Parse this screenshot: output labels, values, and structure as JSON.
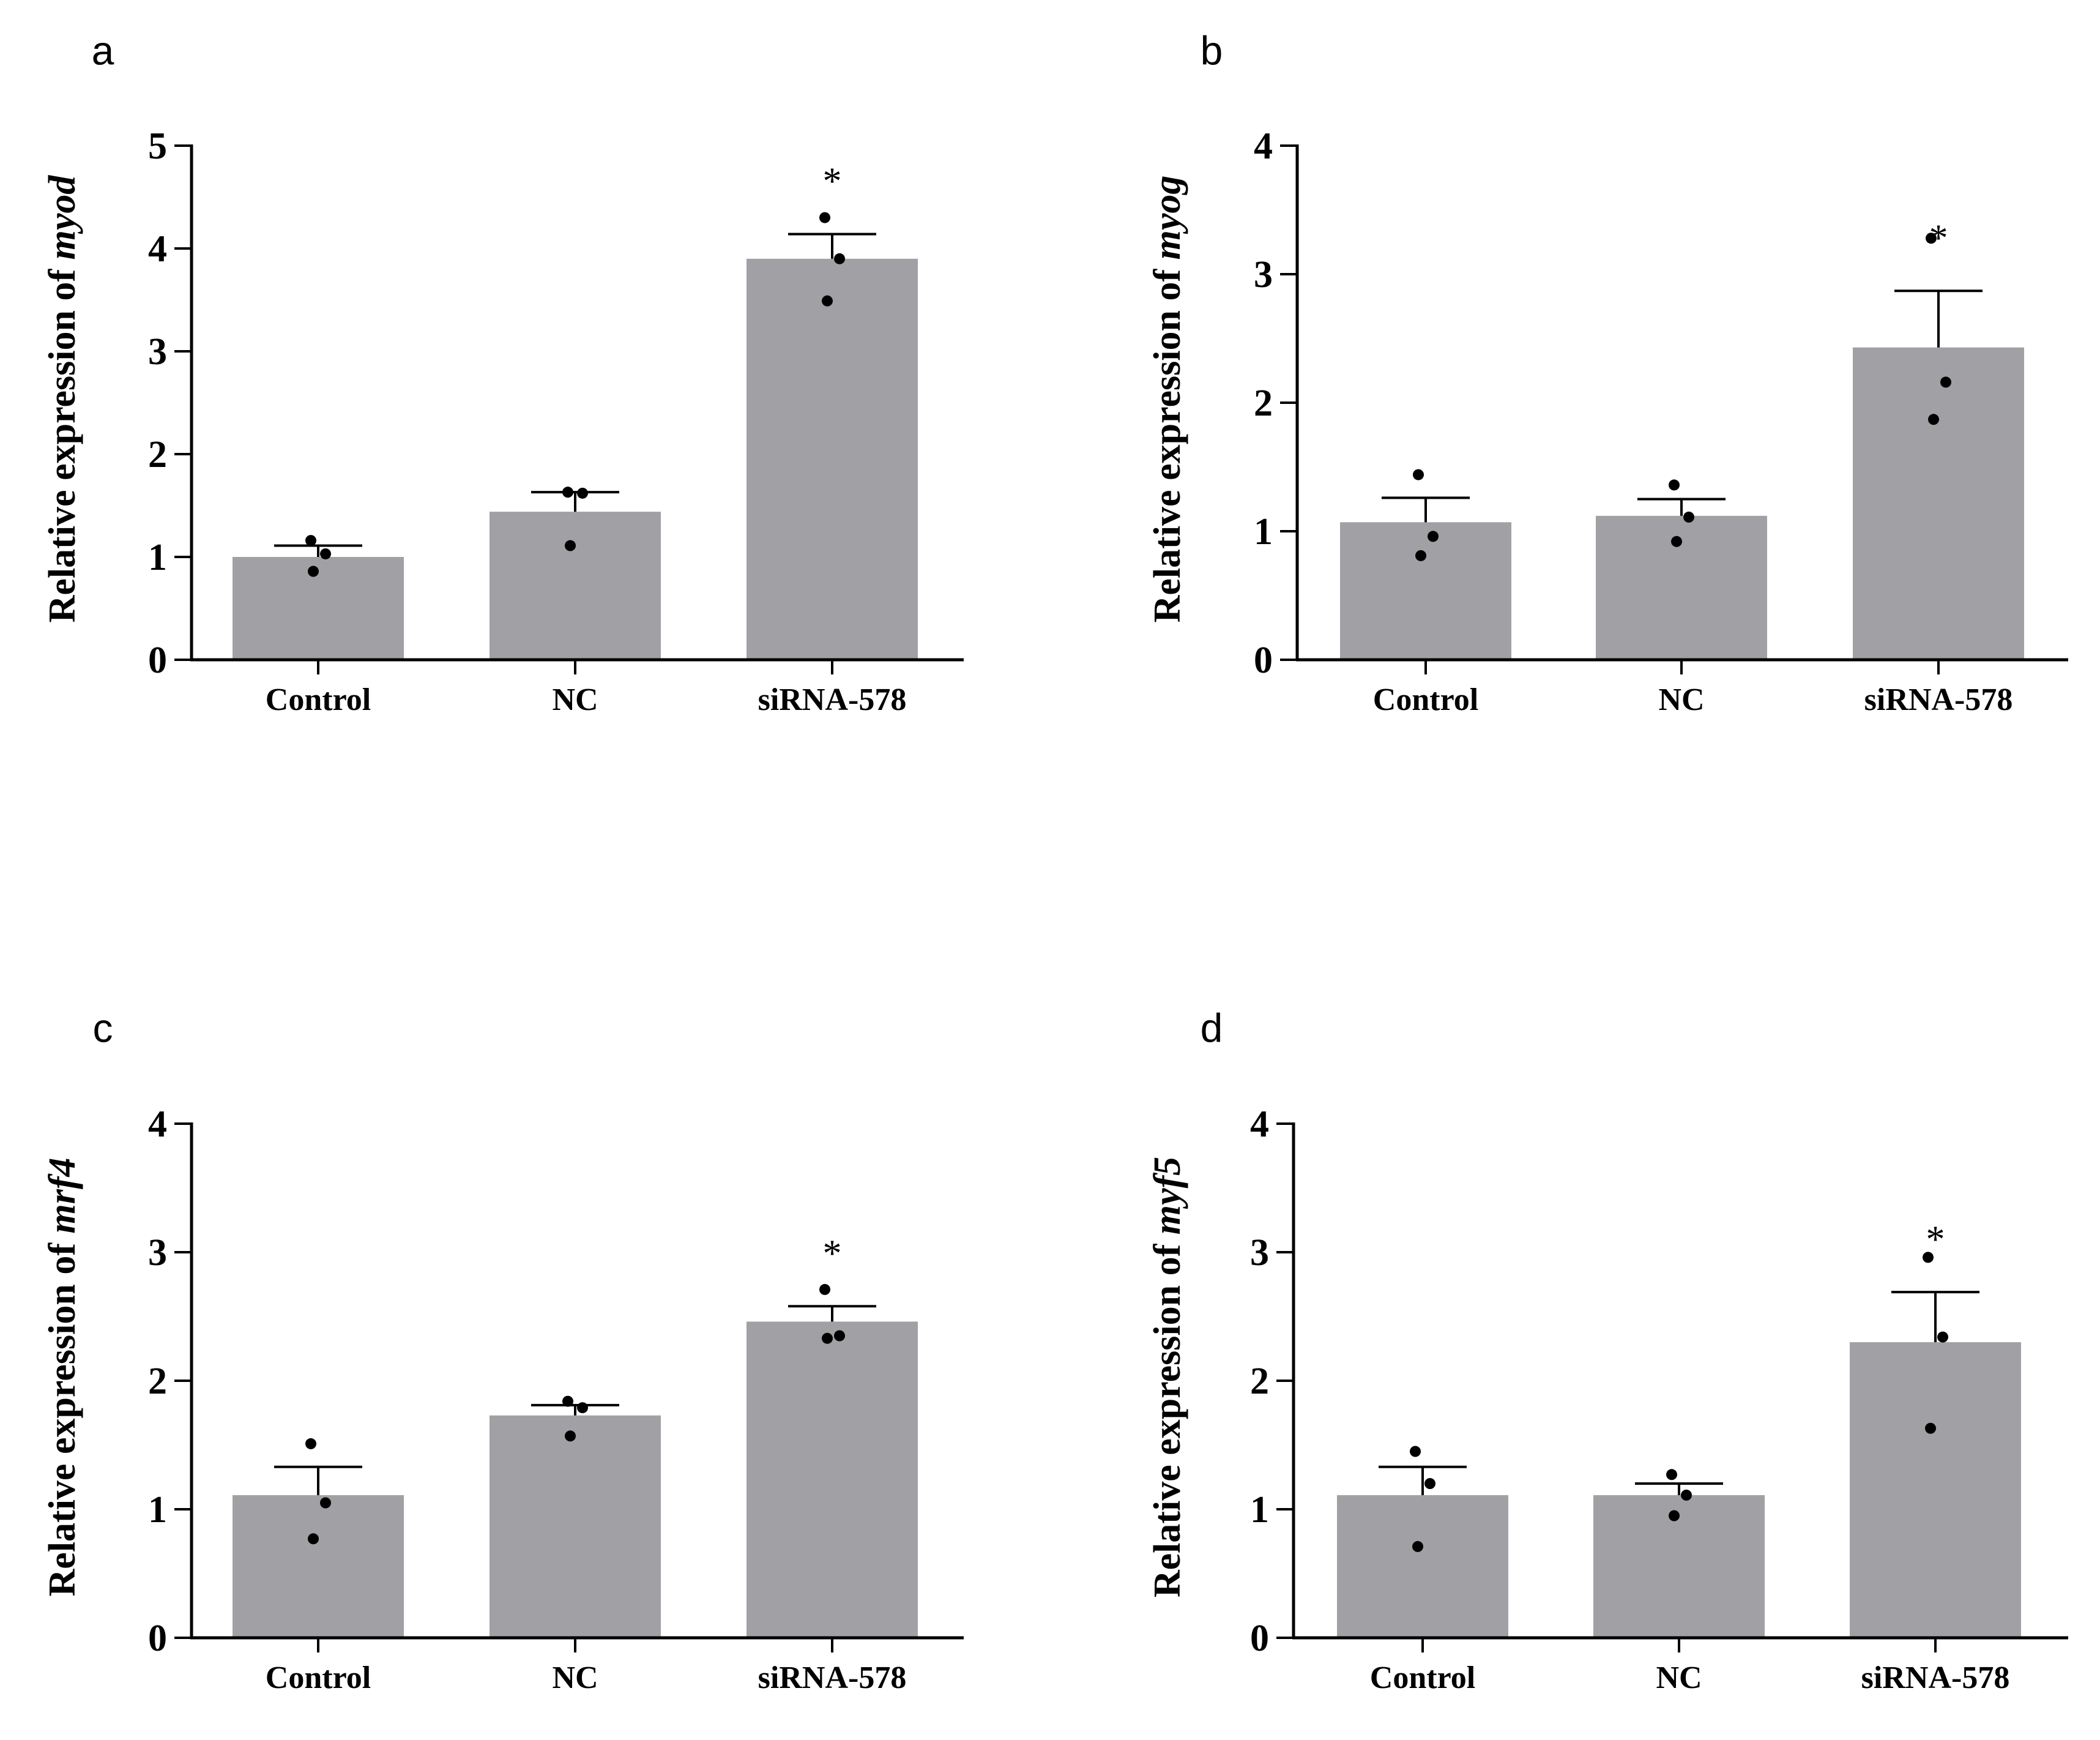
{
  "chart_data": [
    {
      "panel": "a",
      "type": "bar",
      "ylabel_prefix": "Relative expression of ",
      "gene": "myod",
      "categories": [
        "Control",
        "NC",
        "siRNA-578"
      ],
      "values": [
        1.0,
        1.44,
        3.9
      ],
      "errors": [
        0.11,
        0.19,
        0.24
      ],
      "points": [
        [
          1.16,
          1.03,
          0.86
        ],
        [
          1.63,
          1.62,
          1.11
        ],
        [
          4.3,
          3.9,
          3.49
        ]
      ],
      "significance": [
        "",
        "",
        "*"
      ],
      "ylim": [
        0,
        5
      ],
      "yticks": [
        0,
        1,
        2,
        3,
        4,
        5
      ]
    },
    {
      "panel": "b",
      "type": "bar",
      "ylabel_prefix": "Relative expression of ",
      "gene": "myog",
      "categories": [
        "Control",
        "NC",
        "siRNA-578"
      ],
      "values": [
        1.07,
        1.12,
        2.43
      ],
      "errors": [
        0.19,
        0.13,
        0.44
      ],
      "points": [
        [
          1.44,
          0.96,
          0.81
        ],
        [
          1.36,
          1.11,
          0.92
        ],
        [
          3.28,
          2.16,
          1.87
        ]
      ],
      "significance": [
        "",
        "",
        "*"
      ],
      "ylim": [
        0,
        4
      ],
      "yticks": [
        0,
        1,
        2,
        3,
        4
      ]
    },
    {
      "panel": "c",
      "type": "bar",
      "ylabel_prefix": "Relative expression of ",
      "gene": "mrf4",
      "categories": [
        "Control",
        "NC",
        "siRNA-578"
      ],
      "values": [
        1.11,
        1.73,
        2.46
      ],
      "errors": [
        0.22,
        0.08,
        0.12
      ],
      "points": [
        [
          1.51,
          1.05,
          0.77
        ],
        [
          1.84,
          1.79,
          1.57
        ],
        [
          2.71,
          2.35,
          2.33
        ]
      ],
      "significance": [
        "",
        "",
        "*"
      ],
      "ylim": [
        0,
        4
      ],
      "yticks": [
        0,
        1,
        2,
        3,
        4
      ]
    },
    {
      "panel": "d",
      "type": "bar",
      "ylabel_prefix": "Relative expression of ",
      "gene": "myf5",
      "categories": [
        "Control",
        "NC",
        "siRNA-578"
      ],
      "values": [
        1.11,
        1.11,
        2.3
      ],
      "errors": [
        0.22,
        0.09,
        0.39
      ],
      "points": [
        [
          1.45,
          1.2,
          0.71
        ],
        [
          1.27,
          1.11,
          0.95
        ],
        [
          2.96,
          2.34,
          1.63
        ]
      ],
      "significance": [
        "",
        "",
        "*"
      ],
      "ylim": [
        0,
        4
      ],
      "yticks": [
        0,
        1,
        2,
        3,
        4
      ]
    }
  ],
  "colors": {
    "bar": "#a1a1a5",
    "axis": "#000000",
    "point": "#000000"
  }
}
